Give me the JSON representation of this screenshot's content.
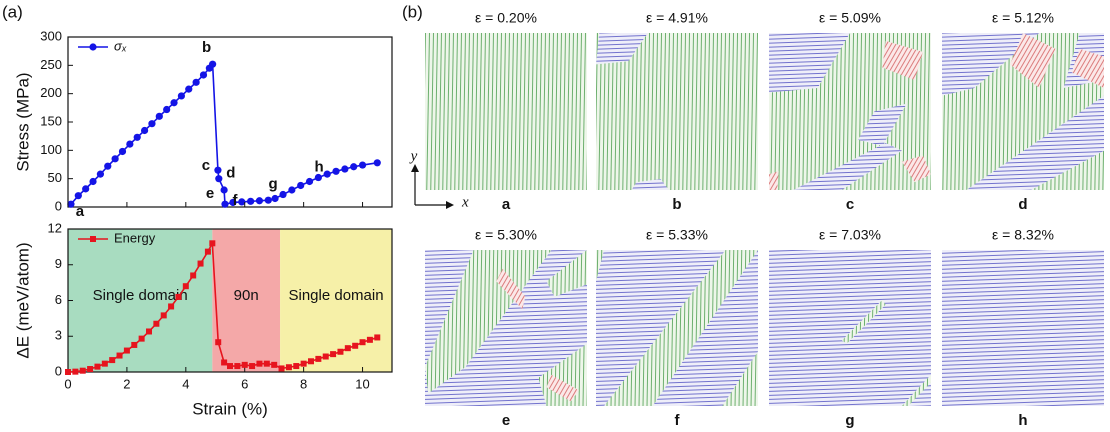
{
  "panel_labels": [
    "(a)",
    "(b)"
  ],
  "chart_data": [
    {
      "type": "line",
      "ylabel": "Stress (MPa)",
      "x": [
        0.1,
        0.35,
        0.6,
        0.85,
        1.1,
        1.35,
        1.6,
        1.85,
        2.1,
        2.35,
        2.6,
        2.85,
        3.1,
        3.35,
        3.6,
        3.85,
        4.1,
        4.35,
        4.6,
        4.8,
        4.91,
        5.09,
        5.12,
        5.3,
        5.33,
        5.6,
        5.9,
        6.2,
        6.5,
        6.8,
        7.03,
        7.3,
        7.6,
        7.9,
        8.2,
        8.5,
        8.8,
        9.1,
        9.4,
        9.7,
        10.0,
        10.5
      ],
      "series": [
        {
          "name": "σₓ",
          "color": "#1414e6",
          "marker": "circle",
          "values": [
            5,
            20,
            32,
            45,
            58,
            72,
            85,
            98,
            111,
            123,
            135,
            147,
            160,
            172,
            184,
            196,
            208,
            220,
            233,
            245,
            252,
            65,
            50,
            30,
            5,
            8,
            9,
            10,
            11,
            12,
            15,
            22,
            30,
            38,
            45,
            52,
            58,
            63,
            67,
            71,
            74,
            78
          ]
        }
      ],
      "xlim": [
        0,
        11
      ],
      "ylim": [
        0,
        300
      ],
      "yticks": [
        0,
        50,
        100,
        150,
        200,
        250,
        300
      ],
      "legend": "upper left",
      "annotations": [
        {
          "text": "a",
          "x": 0.2,
          "y": 5
        },
        {
          "text": "b",
          "x": 4.91,
          "y": 252
        },
        {
          "text": "c",
          "x": 5.09,
          "y": 65
        },
        {
          "text": "d",
          "x": 5.12,
          "y": 50
        },
        {
          "text": "e",
          "x": 5.3,
          "y": 30
        },
        {
          "text": "f",
          "x": 5.33,
          "y": 5
        },
        {
          "text": "g",
          "x": 7.03,
          "y": 15
        },
        {
          "text": "h",
          "x": 8.32,
          "y": 45
        }
      ]
    },
    {
      "type": "line",
      "xlabel": "Strain (%)",
      "ylabel": "ΔE (meV/atom)",
      "x": [
        0,
        0.25,
        0.5,
        0.75,
        1,
        1.25,
        1.5,
        1.75,
        2,
        2.25,
        2.5,
        2.75,
        3,
        3.25,
        3.5,
        3.75,
        4,
        4.25,
        4.5,
        4.75,
        4.9,
        5.1,
        5.3,
        5.5,
        5.75,
        6,
        6.25,
        6.5,
        6.75,
        7,
        7.25,
        7.5,
        7.75,
        8,
        8.25,
        8.5,
        8.75,
        9,
        9.25,
        9.5,
        9.75,
        10,
        10.25,
        10.5
      ],
      "series": [
        {
          "name": "Energy",
          "color": "#e6141e",
          "marker": "square",
          "values": [
            0,
            0.03,
            0.11,
            0.25,
            0.45,
            0.7,
            1.0,
            1.38,
            1.8,
            2.27,
            2.8,
            3.4,
            4.05,
            4.75,
            5.5,
            6.3,
            7.2,
            8.1,
            9.1,
            10.1,
            10.8,
            2.5,
            0.8,
            0.5,
            0.5,
            0.6,
            0.5,
            0.7,
            0.7,
            0.6,
            0.3,
            0.4,
            0.5,
            0.7,
            0.9,
            1.1,
            1.3,
            1.5,
            1.7,
            2.0,
            2.2,
            2.5,
            2.7,
            2.9
          ]
        }
      ],
      "xlim": [
        0,
        11
      ],
      "ylim": [
        0,
        12
      ],
      "xticks": [
        0,
        2,
        4,
        6,
        8,
        10
      ],
      "yticks": [
        0,
        3,
        6,
        9,
        12
      ],
      "legend": "upper left",
      "regions": [
        {
          "label": "Single domain",
          "start": 0,
          "end": 4.9,
          "color": "#a8dcc0"
        },
        {
          "label": "90n",
          "start": 4.9,
          "end": 7.2,
          "color": "#f4a8a8"
        },
        {
          "label": "Single domain",
          "start": 7.2,
          "end": 11,
          "color": "#f6f0a8"
        }
      ]
    }
  ],
  "axes_indicator": {
    "x": "x",
    "y": "y"
  },
  "snapshots": [
    {
      "title": "ε = 0.20%",
      "label": "a"
    },
    {
      "title": "ε = 4.91%",
      "label": "b"
    },
    {
      "title": "ε = 5.09%",
      "label": "c"
    },
    {
      "title": "ε = 5.12%",
      "label": "d"
    },
    {
      "title": "ε = 5.30%",
      "label": "e"
    },
    {
      "title": "ε = 5.33%",
      "label": "f"
    },
    {
      "title": "ε = 7.03%",
      "label": "g"
    },
    {
      "title": "ε = 8.32%",
      "label": "h"
    }
  ]
}
